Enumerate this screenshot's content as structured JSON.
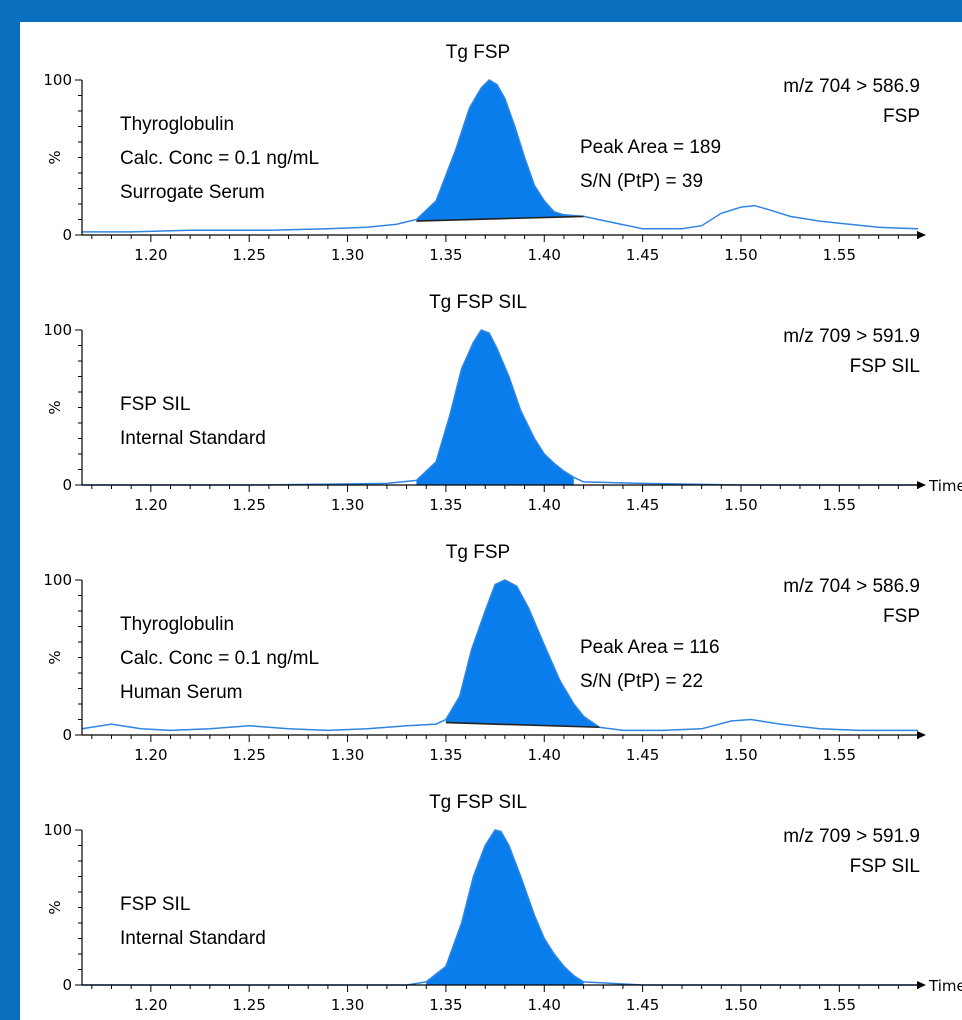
{
  "chart_data": [
    {
      "type": "area",
      "title": "Tg FSP",
      "ylabel": "%",
      "xlabel": "",
      "xlim": [
        1.165,
        1.59
      ],
      "ylim": [
        0,
        100
      ],
      "x_ticks": [
        "1.20",
        "1.25",
        "1.30",
        "1.35",
        "1.40",
        "1.45",
        "1.50",
        "1.55"
      ],
      "y_ticks": [
        "0",
        "100"
      ],
      "transition": [
        "m/z 704 > 586.9",
        "FSP"
      ],
      "annotations": [
        "Thyroglobulin",
        "Calc. Conc =  0.1 ng/mL",
        "Surrogate Serum"
      ],
      "peak_annotations": [
        "Peak Area = 189",
        "S/N (PtP) = 39"
      ],
      "peak": {
        "x": [
          1.335,
          1.42
        ],
        "baseline": [
          9,
          12
        ]
      },
      "series": [
        {
          "x": [
            1.165,
            1.19,
            1.22,
            1.26,
            1.29,
            1.31,
            1.325,
            1.335,
            1.345,
            1.355,
            1.362,
            1.368,
            1.372,
            1.376,
            1.38,
            1.385,
            1.39,
            1.395,
            1.4,
            1.405,
            1.41,
            1.42,
            1.435,
            1.45,
            1.47,
            1.48,
            1.49,
            1.5,
            1.507,
            1.515,
            1.525,
            1.54,
            1.555,
            1.57,
            1.59
          ],
          "y": [
            2,
            2,
            3,
            3,
            4,
            5,
            7,
            10,
            22,
            55,
            82,
            95,
            100,
            97,
            88,
            70,
            50,
            32,
            22,
            15,
            13,
            12,
            8,
            4,
            4,
            6,
            14,
            18,
            19,
            16,
            12,
            9,
            7,
            5,
            4
          ]
        }
      ]
    },
    {
      "type": "area",
      "title": "Tg FSP SIL",
      "ylabel": "%",
      "xlabel": "Time",
      "xlim": [
        1.165,
        1.59
      ],
      "ylim": [
        0,
        100
      ],
      "x_ticks": [
        "1.20",
        "1.25",
        "1.30",
        "1.35",
        "1.40",
        "1.45",
        "1.50",
        "1.55"
      ],
      "y_ticks": [
        "0",
        "100"
      ],
      "transition": [
        "m/z 709 > 591.9",
        "FSP SIL"
      ],
      "annotations": [
        "FSP SIL",
        "Internal Standard"
      ],
      "peak_annotations": [],
      "peak": {
        "x": [
          1.335,
          1.415
        ],
        "baseline": [
          0,
          0
        ]
      },
      "series": [
        {
          "x": [
            1.165,
            1.25,
            1.32,
            1.335,
            1.345,
            1.352,
            1.358,
            1.364,
            1.368,
            1.372,
            1.376,
            1.382,
            1.388,
            1.395,
            1.4,
            1.405,
            1.41,
            1.415,
            1.42,
            1.45,
            1.5,
            1.55,
            1.59
          ],
          "y": [
            0,
            0,
            1,
            3,
            15,
            45,
            75,
            92,
            100,
            98,
            88,
            70,
            48,
            30,
            20,
            14,
            9,
            5,
            2,
            1,
            0,
            0,
            0
          ]
        }
      ]
    },
    {
      "type": "area",
      "title": "Tg FSP",
      "ylabel": "%",
      "xlabel": "",
      "xlim": [
        1.165,
        1.59
      ],
      "ylim": [
        0,
        100
      ],
      "x_ticks": [
        "1.20",
        "1.25",
        "1.30",
        "1.35",
        "1.40",
        "1.45",
        "1.50",
        "1.55"
      ],
      "y_ticks": [
        "0",
        "100"
      ],
      "transition": [
        "m/z 704 > 586.9",
        "FSP"
      ],
      "annotations": [
        "Thyroglobulin",
        "Calc. Conc = 0.1 ng/mL",
        "Human Serum"
      ],
      "peak_annotations": [
        "Peak Area = 116",
        "S/N (PtP) = 22"
      ],
      "peak": {
        "x": [
          1.35,
          1.428
        ],
        "baseline": [
          8,
          5
        ]
      },
      "series": [
        {
          "x": [
            1.165,
            1.18,
            1.195,
            1.21,
            1.23,
            1.25,
            1.27,
            1.29,
            1.31,
            1.33,
            1.345,
            1.35,
            1.357,
            1.363,
            1.37,
            1.375,
            1.38,
            1.386,
            1.392,
            1.4,
            1.408,
            1.415,
            1.42,
            1.428,
            1.44,
            1.46,
            1.48,
            1.495,
            1.505,
            1.52,
            1.54,
            1.56,
            1.59
          ],
          "y": [
            4,
            7,
            4,
            3,
            4,
            6,
            4,
            3,
            4,
            6,
            7,
            10,
            25,
            55,
            80,
            97,
            100,
            96,
            82,
            58,
            35,
            20,
            12,
            5,
            3,
            3,
            4,
            9,
            10,
            7,
            4,
            3,
            3
          ]
        }
      ]
    },
    {
      "type": "area",
      "title": "Tg FSP SIL",
      "ylabel": "%",
      "xlabel": "Time",
      "xlim": [
        1.165,
        1.59
      ],
      "ylim": [
        0,
        100
      ],
      "x_ticks": [
        "1.20",
        "1.25",
        "1.30",
        "1.35",
        "1.40",
        "1.45",
        "1.50",
        "1.55"
      ],
      "y_ticks": [
        "0",
        "100"
      ],
      "transition": [
        "m/z 709 > 591.9",
        "FSP SIL"
      ],
      "annotations": [
        "FSP SIL",
        "Internal Standard"
      ],
      "peak_annotations": [],
      "peak": {
        "x": [
          1.34,
          1.42
        ],
        "baseline": [
          0,
          0
        ]
      },
      "series": [
        {
          "x": [
            1.165,
            1.25,
            1.33,
            1.34,
            1.35,
            1.358,
            1.364,
            1.37,
            1.375,
            1.378,
            1.382,
            1.388,
            1.395,
            1.4,
            1.405,
            1.41,
            1.415,
            1.42,
            1.45,
            1.5,
            1.55,
            1.59
          ],
          "y": [
            0,
            0,
            0,
            2,
            12,
            40,
            70,
            90,
            100,
            99,
            90,
            70,
            45,
            30,
            20,
            12,
            6,
            2,
            0,
            0,
            0,
            0
          ]
        }
      ]
    }
  ],
  "colors": {
    "background": "#0B6FBF",
    "peak_fill": "#0A7DEC",
    "trace": "#2F86E0",
    "baseline": "#222222"
  }
}
